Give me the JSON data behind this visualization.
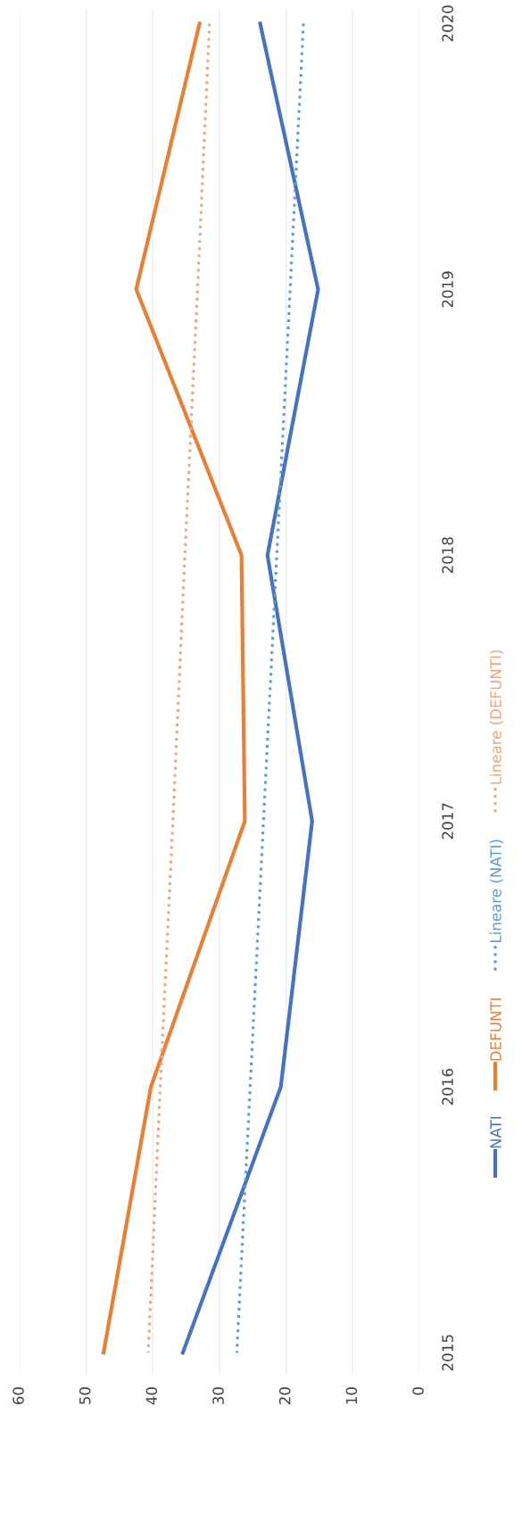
{
  "chart_data": {
    "type": "line",
    "orientation": "horizontal",
    "categories": [
      "2020",
      "2019",
      "2018",
      "2017",
      "2016",
      "2015"
    ],
    "xlim": [
      60,
      0
    ],
    "xticks": [
      60,
      50,
      40,
      30,
      20,
      10,
      0
    ],
    "grid": "x",
    "legend": "right",
    "series": [
      {
        "name": "NATI",
        "color": "#4472c4",
        "line_style": "solid",
        "values": [
          23.9,
          15.2,
          22.8,
          16.1,
          20.8,
          35.5
        ]
      },
      {
        "name": "DEFUNTI",
        "color": "#ed7d31",
        "line_style": "solid",
        "values": [
          33.0,
          42.5,
          26.7,
          26.2,
          40.3,
          47.4
        ]
      },
      {
        "name": "Lineare (NATI)",
        "color": "#5b9bd5",
        "line_style": "dotted",
        "values": [
          17.4,
          19.4,
          21.4,
          23.4,
          25.4,
          27.4
        ]
      },
      {
        "name": "Lineare (DEFUNTI)",
        "color": "#f4a27a",
        "line_style": "dotted",
        "values": [
          31.5,
          33.3,
          35.2,
          37.0,
          38.9,
          40.7
        ]
      }
    ]
  }
}
